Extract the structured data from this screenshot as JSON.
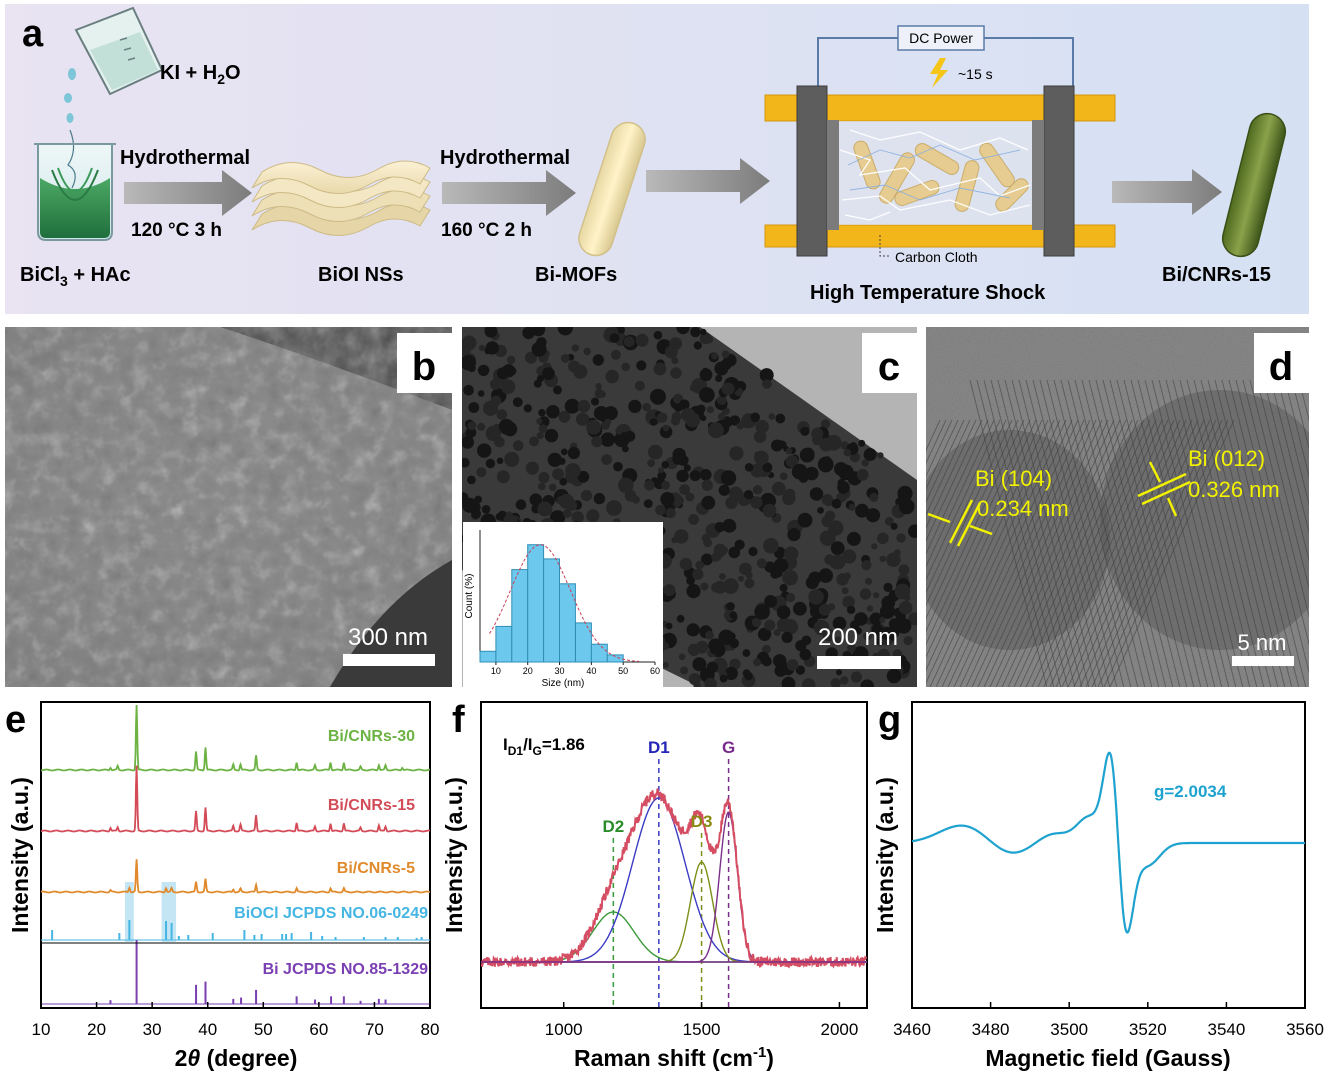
{
  "panel_letters": {
    "a": "a",
    "b": "b",
    "c": "c",
    "d": "d",
    "e": "e",
    "f": "f",
    "g": "g"
  },
  "scheme": {
    "reagent_ki": "KI + H",
    "reagent_ki_sub": "2",
    "reagent_ki_end": "O",
    "step1_label": "Hydrothermal",
    "step1_conditions": "120 °C  3 h",
    "step2_label": "Hydrothermal",
    "step2_conditions": "160 °C  2 h",
    "precursor": "BiCl",
    "precursor_sub": "3",
    "precursor_end": " + HAc",
    "intermediate1": "BiOI NSs",
    "intermediate2": "Bi-MOFs",
    "dc_power": "DC Power",
    "shock_time": "~15 s",
    "carbon_cloth": "Carbon Cloth",
    "shock_label": "High Temperature Shock",
    "product": "Bi/CNRs-15",
    "colors": {
      "background": "#dfe3f4",
      "arrow": "#8e8e8e",
      "electrode": "#f2b51a",
      "bolt": "#f5c518"
    }
  },
  "micrographs": {
    "b": {
      "scale_bar": "300 nm"
    },
    "c": {
      "scale_bar": "200 nm"
    },
    "d": {
      "scale_bar": "5 nm",
      "lattice1_plane": "Bi (104)",
      "lattice1_spacing": "0.234 nm",
      "lattice2_plane": "Bi (012)",
      "lattice2_spacing": "0.326 nm",
      "annotation_color": "#f2f200"
    }
  },
  "chart_data": [
    {
      "type": "bar",
      "panel": "c-inset",
      "title": "",
      "xlabel": "Size (nm)",
      "ylabel": "Count (%)",
      "categories": [
        "7.5",
        "12.5",
        "17.5",
        "22.5",
        "27.5",
        "32.5",
        "37.5",
        "42.5",
        "47.5"
      ],
      "values": [
        3,
        10,
        26,
        33,
        29,
        22,
        11,
        5,
        2
      ],
      "xlim": [
        5,
        60
      ],
      "ylim": [
        0,
        36
      ],
      "xticks": [
        "10",
        "20",
        "30",
        "40",
        "50",
        "60"
      ],
      "color": "#6cc8ec"
    },
    {
      "type": "line",
      "panel": "e",
      "xlabel": "2θ (degree)",
      "xlabel_main": "2",
      "xlabel_theta": "θ",
      "xlabel_unit": " (degree)",
      "ylabel": "Intensity (a.u.)",
      "xlim": [
        10,
        80
      ],
      "xticks": [
        "10",
        "20",
        "30",
        "40",
        "50",
        "60",
        "70",
        "80"
      ],
      "series": [
        {
          "name": "Bi/CNRs-30",
          "color": "#6cb344",
          "peaks": [
            [
              22.5,
              0.04
            ],
            [
              23.8,
              0.06
            ],
            [
              27.2,
              1.0
            ],
            [
              37.9,
              0.28
            ],
            [
              39.6,
              0.35
            ],
            [
              44.6,
              0.08
            ],
            [
              45.9,
              0.09
            ],
            [
              48.7,
              0.22
            ],
            [
              56.0,
              0.12
            ],
            [
              59.3,
              0.07
            ],
            [
              62.1,
              0.12
            ],
            [
              64.5,
              0.12
            ],
            [
              67.5,
              0.05
            ],
            [
              70.8,
              0.08
            ],
            [
              72.0,
              0.07
            ],
            [
              75.0,
              0.04
            ]
          ]
        },
        {
          "name": "Bi/CNRs-15",
          "color": "#d34b57",
          "peaks": [
            [
              22.5,
              0.05
            ],
            [
              23.8,
              0.06
            ],
            [
              27.2,
              1.0
            ],
            [
              37.9,
              0.3
            ],
            [
              39.6,
              0.36
            ],
            [
              44.6,
              0.08
            ],
            [
              45.9,
              0.1
            ],
            [
              48.7,
              0.24
            ],
            [
              56.0,
              0.13
            ],
            [
              59.3,
              0.07
            ],
            [
              62.1,
              0.12
            ],
            [
              64.5,
              0.12
            ],
            [
              67.5,
              0.05
            ],
            [
              70.8,
              0.09
            ],
            [
              72.0,
              0.07
            ]
          ]
        },
        {
          "name": "Bi/CNRs-5",
          "color": "#e08a2c",
          "peaks": [
            [
              22.5,
              0.04
            ],
            [
              25.9,
              0.1
            ],
            [
              27.2,
              0.7
            ],
            [
              32.5,
              0.09
            ],
            [
              33.5,
              0.08
            ],
            [
              37.9,
              0.22
            ],
            [
              39.6,
              0.28
            ],
            [
              44.6,
              0.06
            ],
            [
              45.9,
              0.07
            ],
            [
              48.7,
              0.16
            ],
            [
              56.0,
              0.08
            ],
            [
              62.1,
              0.08
            ],
            [
              64.5,
              0.08
            ]
          ]
        }
      ],
      "references": [
        {
          "name": "BiOCl JCPDS NO.06-0249",
          "color": "#45b6e3",
          "lines": [
            [
              12.0,
              0.5
            ],
            [
              24.1,
              0.35
            ],
            [
              25.9,
              1.0
            ],
            [
              32.5,
              0.95
            ],
            [
              33.5,
              0.85
            ],
            [
              34.8,
              0.2
            ],
            [
              36.5,
              0.25
            ],
            [
              40.9,
              0.35
            ],
            [
              46.6,
              0.5
            ],
            [
              48.4,
              0.25
            ],
            [
              49.7,
              0.3
            ],
            [
              53.4,
              0.3
            ],
            [
              54.1,
              0.3
            ],
            [
              55.1,
              0.35
            ],
            [
              58.6,
              0.4
            ],
            [
              60.6,
              0.2
            ],
            [
              63.0,
              0.15
            ],
            [
              68.1,
              0.15
            ],
            [
              72.0,
              0.15
            ],
            [
              74.2,
              0.15
            ],
            [
              77.6,
              0.1
            ],
            [
              78.5,
              0.15
            ]
          ]
        },
        {
          "name": "Bi JCPDS NO.85-1329",
          "color": "#7a3fb2",
          "lines": [
            [
              22.5,
              0.06
            ],
            [
              27.2,
              1.0
            ],
            [
              37.9,
              0.3
            ],
            [
              39.6,
              0.35
            ],
            [
              44.6,
              0.08
            ],
            [
              46.0,
              0.1
            ],
            [
              48.7,
              0.22
            ],
            [
              56.0,
              0.12
            ],
            [
              59.3,
              0.07
            ],
            [
              62.2,
              0.12
            ],
            [
              64.5,
              0.12
            ],
            [
              67.5,
              0.05
            ],
            [
              70.8,
              0.08
            ],
            [
              72.0,
              0.07
            ]
          ]
        }
      ],
      "highlight_bands": [
        [
          25.9
        ],
        [
          32.5,
          33.5
        ]
      ]
    },
    {
      "type": "line",
      "panel": "f",
      "xlabel": "Raman shift (cm",
      "xlabel_sup": "-1",
      "xlabel_end": ")",
      "ylabel": "Intensity (a.u.)",
      "xlim": [
        700,
        2100
      ],
      "xticks": [
        "1000",
        "1500",
        "2000"
      ],
      "ratio_text_main": "I",
      "ratio_sub1": "D1",
      "ratio_mid": "/I",
      "ratio_sub2": "G",
      "ratio_value": "=1.86",
      "peaks": [
        {
          "name": "D2",
          "center": 1180,
          "height": 0.25,
          "width": 75,
          "color": "#3a9a3a",
          "label_color": "#2a8c2a"
        },
        {
          "name": "D1",
          "center": 1345,
          "height": 0.82,
          "width": 95,
          "color": "#3b3bc4",
          "label_color": "#2424b8"
        },
        {
          "name": "D3",
          "center": 1500,
          "height": 0.5,
          "width": 40,
          "color": "#7d8f18",
          "label_color": "#8a8a10"
        },
        {
          "name": "G",
          "center": 1598,
          "height": 0.75,
          "width": 32,
          "color": "#7a2f8a",
          "label_color": "#7a2a8c"
        }
      ],
      "fit_color": "#d54d63"
    },
    {
      "type": "line",
      "panel": "g",
      "xlabel": "Magnetic field (Gauss)",
      "ylabel": "Intensity (a.u.)",
      "xlim": [
        3460,
        3560
      ],
      "xticks": [
        "3460",
        "3480",
        "3500",
        "3520",
        "3540",
        "3560"
      ],
      "annotation": "g=2.0034",
      "color": "#1ea2cf",
      "peak_max_field": 3510,
      "peak_min_field": 3515
    }
  ]
}
